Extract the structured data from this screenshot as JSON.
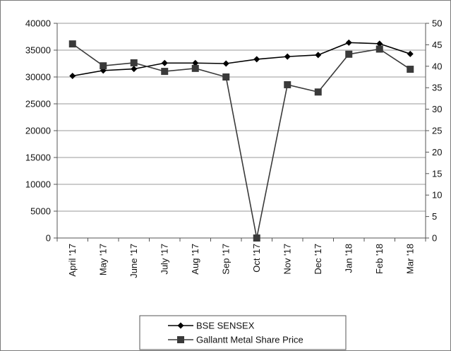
{
  "chart_data": {
    "type": "line",
    "title": "",
    "xlabel": "",
    "ylabel": "",
    "categories": [
      "April '17",
      "May '17",
      "June '17",
      "July '17",
      "Aug '17",
      "Sep '17",
      "Oct '17",
      "Nov '17",
      "Dec '17",
      "Jan '18",
      "Feb '18",
      "Mar '18"
    ],
    "y_left": {
      "min": 0,
      "max": 40000,
      "ticks": [
        "0",
        "5000",
        "10000",
        "15000",
        "20000",
        "25000",
        "30000",
        "35000",
        "40000"
      ]
    },
    "y_right": {
      "min": 0,
      "max": 50,
      "ticks": [
        "0",
        "5",
        "10",
        "15",
        "20",
        "25",
        "30",
        "35",
        "40",
        "45",
        "50"
      ]
    },
    "grid": "horizontal",
    "legend_position": "bottom",
    "series": [
      {
        "name": "BSE SENSEX",
        "axis": "left",
        "marker": "diamond",
        "color": "#000000",
        "values": [
          30200,
          31200,
          31500,
          32600,
          32600,
          32500,
          33300,
          33800,
          34100,
          36400,
          36200,
          34300
        ]
      },
      {
        "name": "Gallantt Metal Share Price",
        "axis": "right",
        "marker": "square",
        "color": "#3a3a3a",
        "values": [
          45.2,
          40.1,
          40.8,
          38.8,
          39.5,
          37.5,
          0,
          35.7,
          34.0,
          42.8,
          44.0,
          39.3
        ]
      }
    ]
  }
}
